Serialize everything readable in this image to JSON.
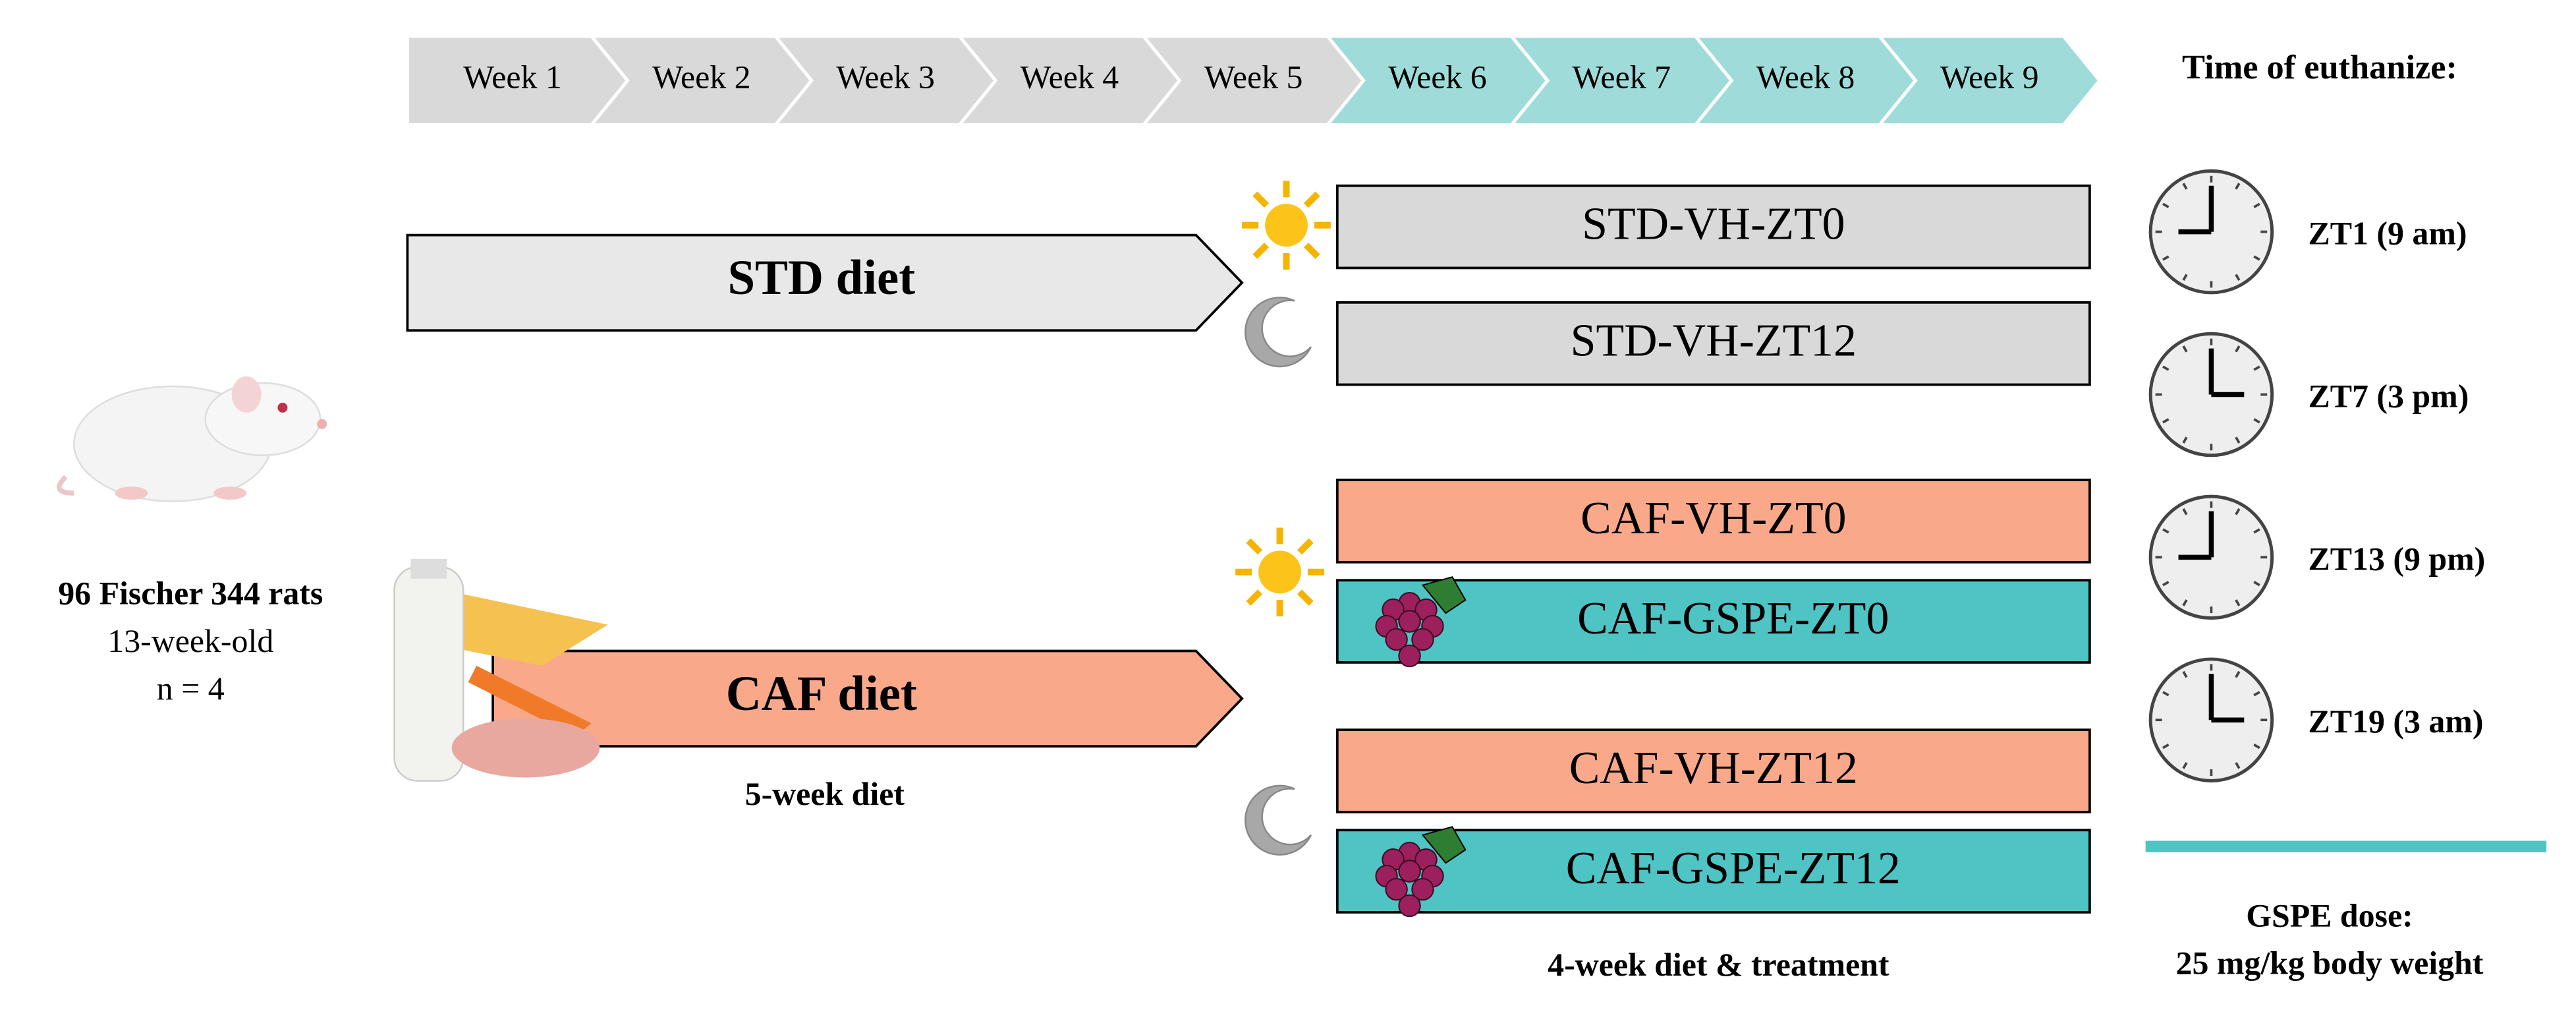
{
  "timeline": {
    "weeks": [
      "Week 1",
      "Week 2",
      "Week 3",
      "Week 4",
      "Week 5",
      "Week 6",
      "Week 7",
      "Week 8",
      "Week 9"
    ]
  },
  "euthanize": {
    "title": "Time of euthanize:",
    "times": [
      "ZT1 (9 am)",
      "ZT7 (3 pm)",
      "ZT13 (9 pm)",
      "ZT19 (3 am)"
    ]
  },
  "subjects": {
    "lines": [
      "96 Fischer 344 rats",
      "13-week-old",
      "n = 4"
    ]
  },
  "diets": {
    "std": "STD diet",
    "caf": "CAF diet",
    "caf_duration": "5-week diet"
  },
  "groups": [
    "STD-VH-ZT0",
    "STD-VH-ZT12",
    "CAF-VH-ZT0",
    "CAF-GSPE-ZT0",
    "CAF-VH-ZT12",
    "CAF-GSPE-ZT12"
  ],
  "treatment_duration": "4-week diet & treatment",
  "gspe": {
    "lines": [
      "GSPE dose:",
      "25 mg/kg body weight"
    ]
  }
}
